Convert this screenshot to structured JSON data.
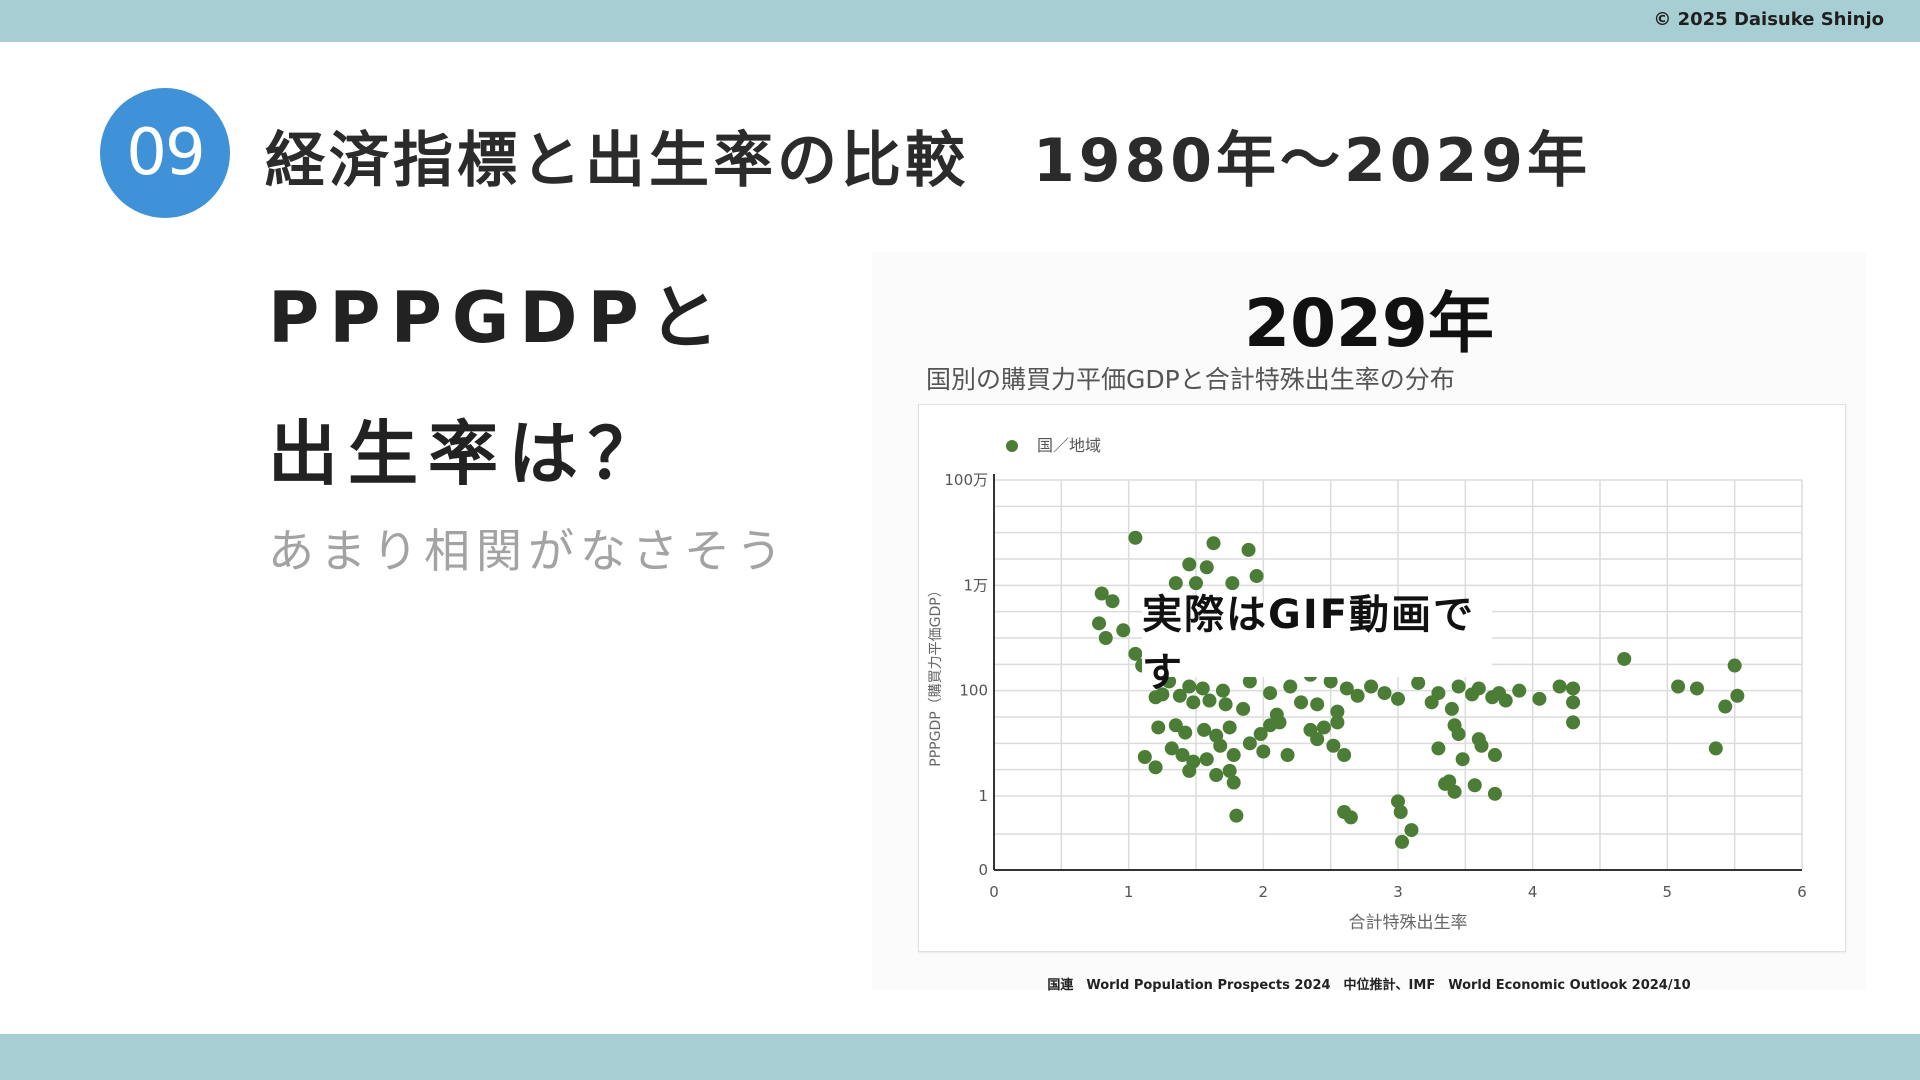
{
  "header": {
    "copyright": "© 2025 Daisuke Shinjo",
    "section_number": "09",
    "title": "経済指標と出生率の比較　1980年〜2029年"
  },
  "left": {
    "heading_line1": "PPPGDPと",
    "heading_line2": "出生率は？",
    "subtext": "あまり相関がなさそう"
  },
  "overlay": {
    "gif_label": "実際はGIF動画です"
  },
  "source_note": "国連　World Population Prospects 2024　中位推計、IMF　World Economic Outlook 2024/10",
  "colors": {
    "bar": "#a7cfd3",
    "badge": "#3f91d8",
    "point": "#4b7d36"
  },
  "chart_data": {
    "type": "scatter",
    "year_label": "2029年",
    "title": "国別の購買力平価GDPと合計特殊出生率の分布",
    "xlabel": "合計特殊出生率",
    "ylabel": "PPPGDP（購買力平価GDP）",
    "xlim": [
      0,
      6
    ],
    "x_ticks": [
      "0",
      "1",
      "2",
      "3",
      "4",
      "5",
      "6"
    ],
    "y_scale": "log",
    "y_ticks": [
      {
        "value": 0,
        "label": "0"
      },
      {
        "value": 1,
        "label": "1"
      },
      {
        "value": 100,
        "label": "100"
      },
      {
        "value": 10000,
        "label": "1万"
      },
      {
        "value": 1000000,
        "label": "100万"
      }
    ],
    "grid": true,
    "legend": {
      "position": "top-left",
      "entries": [
        "国／地域"
      ]
    },
    "series": [
      {
        "name": "国／地域",
        "points": [
          [
            1.05,
            80000
          ],
          [
            1.63,
            63000
          ],
          [
            1.89,
            47000
          ],
          [
            1.45,
            25000
          ],
          [
            1.58,
            22000
          ],
          [
            1.77,
            11000
          ],
          [
            1.35,
            11000
          ],
          [
            1.5,
            11000
          ],
          [
            1.95,
            15000
          ],
          [
            0.8,
            7000
          ],
          [
            0.88,
            5000
          ],
          [
            0.78,
            1900
          ],
          [
            0.96,
            1400
          ],
          [
            0.83,
            1000
          ],
          [
            1.05,
            500
          ],
          [
            1.1,
            300
          ],
          [
            1.18,
            300
          ],
          [
            1.4,
            300
          ],
          [
            1.5,
            260
          ],
          [
            1.62,
            250
          ],
          [
            1.3,
            150
          ],
          [
            1.45,
            120
          ],
          [
            1.55,
            110
          ],
          [
            1.7,
            100
          ],
          [
            1.9,
            150
          ],
          [
            2.05,
            90
          ],
          [
            2.2,
            120
          ],
          [
            2.35,
            200
          ],
          [
            2.5,
            150
          ],
          [
            2.62,
            110
          ],
          [
            2.8,
            120
          ],
          [
            2.9,
            90
          ],
          [
            3.0,
            70
          ],
          [
            3.15,
            140
          ],
          [
            3.3,
            90
          ],
          [
            3.45,
            120
          ],
          [
            3.6,
            110
          ],
          [
            3.75,
            90
          ],
          [
            3.9,
            100
          ],
          [
            4.05,
            70
          ],
          [
            4.2,
            120
          ],
          [
            4.3,
            110
          ],
          [
            1.2,
            75
          ],
          [
            1.25,
            85
          ],
          [
            1.38,
            80
          ],
          [
            1.48,
            60
          ],
          [
            1.6,
            65
          ],
          [
            1.72,
            55
          ],
          [
            1.85,
            45
          ],
          [
            2.1,
            35
          ],
          [
            2.28,
            60
          ],
          [
            2.4,
            55
          ],
          [
            2.55,
            40
          ],
          [
            2.7,
            80
          ],
          [
            3.25,
            60
          ],
          [
            3.4,
            45
          ],
          [
            3.55,
            85
          ],
          [
            3.7,
            75
          ],
          [
            3.8,
            65
          ],
          [
            4.3,
            60
          ],
          [
            1.22,
            20
          ],
          [
            1.35,
            22
          ],
          [
            1.42,
            16
          ],
          [
            1.56,
            18
          ],
          [
            1.65,
            14
          ],
          [
            1.75,
            20
          ],
          [
            1.98,
            15
          ],
          [
            2.05,
            22
          ],
          [
            2.12,
            25
          ],
          [
            2.35,
            18
          ],
          [
            2.45,
            20
          ],
          [
            2.55,
            25
          ],
          [
            3.42,
            22
          ],
          [
            3.45,
            15
          ],
          [
            3.6,
            12
          ],
          [
            4.3,
            25
          ],
          [
            1.32,
            8
          ],
          [
            1.4,
            6
          ],
          [
            1.48,
            4.5
          ],
          [
            1.58,
            5
          ],
          [
            1.68,
            9
          ],
          [
            1.78,
            6
          ],
          [
            1.9,
            10
          ],
          [
            2.0,
            7
          ],
          [
            2.18,
            6
          ],
          [
            2.4,
            12
          ],
          [
            2.52,
            9
          ],
          [
            2.6,
            6
          ],
          [
            3.3,
            8
          ],
          [
            3.48,
            5
          ],
          [
            3.62,
            9
          ],
          [
            3.72,
            6
          ],
          [
            1.12,
            5.5
          ],
          [
            1.2,
            3.5
          ],
          [
            1.45,
            3
          ],
          [
            1.65,
            2.5
          ],
          [
            3.35,
            1.7
          ],
          [
            3.38,
            1.9
          ],
          [
            3.42,
            1.2
          ],
          [
            3.57,
            1.6
          ],
          [
            3.72,
            1.1
          ],
          [
            1.75,
            3
          ],
          [
            1.78,
            1.8
          ],
          [
            2.6,
            0.55
          ],
          [
            2.65,
            0.45
          ],
          [
            3.0,
            0.82
          ],
          [
            3.02,
            0.55
          ],
          [
            3.03,
            0.18
          ],
          [
            3.1,
            0.28
          ],
          [
            1.8,
            0.48
          ],
          [
            4.68,
            400
          ],
          [
            5.08,
            120
          ],
          [
            5.22,
            110
          ],
          [
            5.36,
            8
          ],
          [
            5.43,
            50
          ],
          [
            5.5,
            300
          ],
          [
            5.52,
            80
          ]
        ]
      }
    ]
  }
}
